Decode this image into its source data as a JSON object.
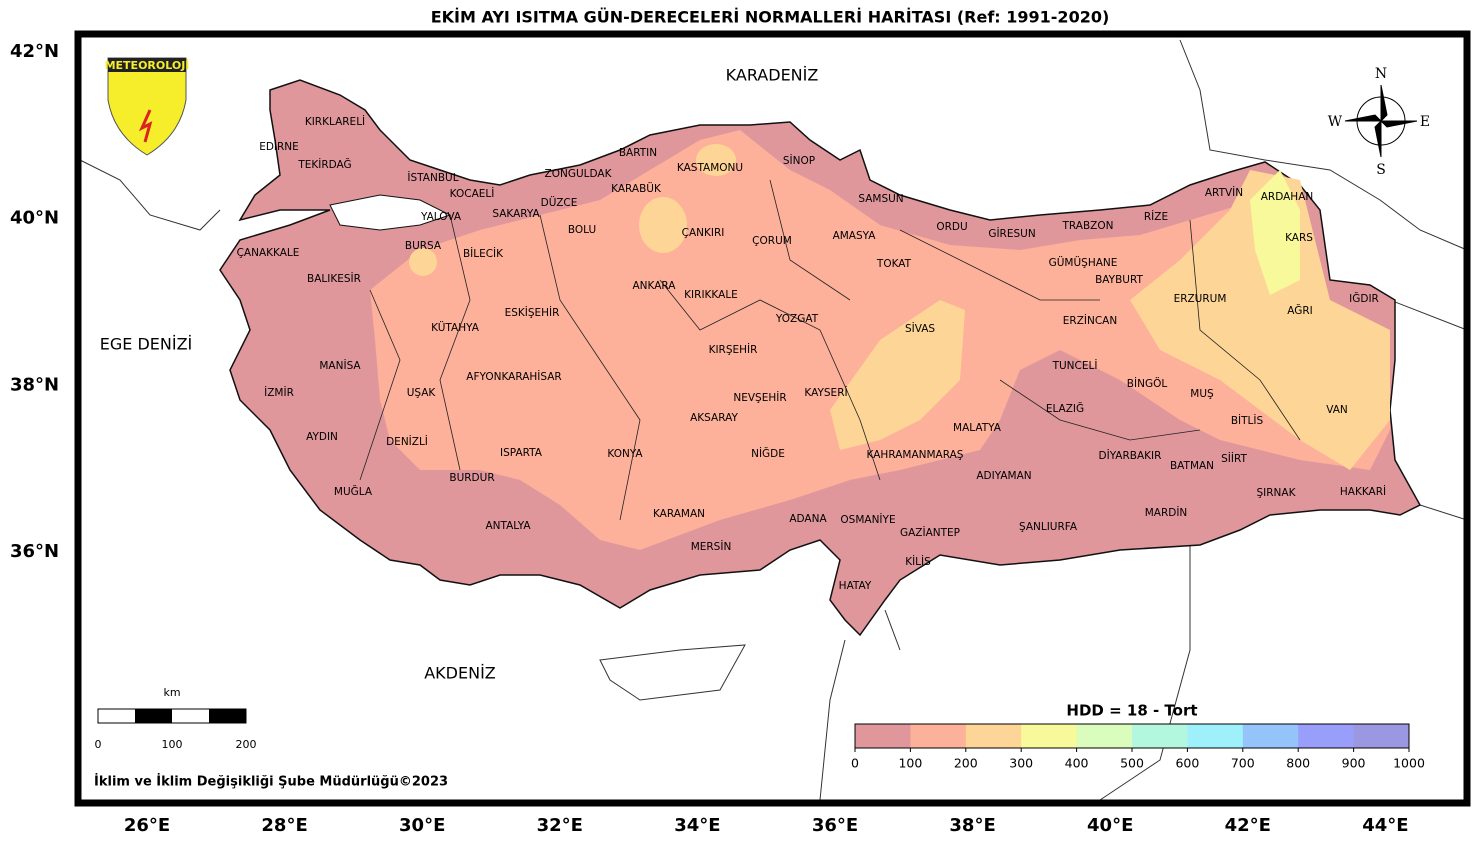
{
  "map": {
    "title": "EKİM AYI ISITMA GÜN-DERECELERİ NORMALLERİ HARİTASI (Ref: 1991-2020)",
    "lat_ticks": [
      {
        "value": 42,
        "label": "42°N"
      },
      {
        "value": 40,
        "label": "40°N"
      },
      {
        "value": 38,
        "label": "38°N"
      },
      {
        "value": 36,
        "label": "36°N"
      }
    ],
    "lon_ticks": [
      {
        "value": 26,
        "label": "26°E"
      },
      {
        "value": 28,
        "label": "28°E"
      },
      {
        "value": 30,
        "label": "30°E"
      },
      {
        "value": 32,
        "label": "32°E"
      },
      {
        "value": 34,
        "label": "34°E"
      },
      {
        "value": 36,
        "label": "36°E"
      },
      {
        "value": 38,
        "label": "38°E"
      },
      {
        "value": 40,
        "label": "40°E"
      },
      {
        "value": 42,
        "label": "42°E"
      },
      {
        "value": 44,
        "label": "44°E"
      }
    ],
    "seas": [
      "KARADENİZ",
      "EGE DENİZİ",
      "AKDENİZ"
    ],
    "logo_text": "METEOROLOJİ",
    "compass": [
      "N",
      "S",
      "E",
      "W"
    ],
    "scale_bar": {
      "unit": "km",
      "labels": [
        0,
        100,
        200
      ]
    },
    "footer": "İklim ve İklim Değişikliği Şube Müdürlüğü©2023",
    "colorbar": {
      "label": "HDD = 18 - Tort",
      "ticks": [
        0,
        100,
        200,
        300,
        400,
        500,
        600,
        700,
        800,
        900,
        1000
      ],
      "colors": [
        "#df979c",
        "#fdb09a",
        "#fdd596",
        "#f8f99a",
        "#dafdbd",
        "#b3f8de",
        "#9ef1fb",
        "#95c4fb",
        "#989efa",
        "#9b97e0"
      ]
    },
    "provinces": [
      "KIRKLARELİ",
      "EDİRNE",
      "TEKİRDAĞ",
      "İSTANBUL",
      "KOCAELİ",
      "YALOVA",
      "SAKARYA",
      "DÜZCE",
      "ZONGULDAK",
      "BARTIN",
      "KARABÜK",
      "KASTAMONU",
      "SİNOP",
      "SAMSUN",
      "ORDU",
      "GİRESUN",
      "TRABZON",
      "RİZE",
      "ARTVİN",
      "ARDAHAN",
      "KARS",
      "IĞDIR",
      "AĞRI",
      "ERZURUM",
      "BAYBURT",
      "GÜMÜŞHANE",
      "ERZİNCAN",
      "TUNCELİ",
      "BİNGÖL",
      "MUŞ",
      "BİTLİS",
      "VAN",
      "ELAZIĞ",
      "MALATYA",
      "DİYARBAKIR",
      "BATMAN",
      "SİİRT",
      "ŞIRNAK",
      "HAKKARİ",
      "MARDİN",
      "ŞANLIURFA",
      "ADIYAMAN",
      "KAHRAMANMARAŞ",
      "GAZİANTEP",
      "KİLİS",
      "OSMANİYE",
      "HATAY",
      "ADANA",
      "MERSİN",
      "KARAMAN",
      "NİĞDE",
      "KAYSERİ",
      "SİVAS",
      "YOZGAT",
      "TOKAT",
      "AMASYA",
      "ÇORUM",
      "ÇANKIRI",
      "KIRIKKALE",
      "ANKARA",
      "KIRŞEHİR",
      "NEVŞEHİR",
      "AKSARAY",
      "KONYA",
      "ANTALYA",
      "BURDUR",
      "ISPARTA",
      "DENİZLİ",
      "MUĞLA",
      "AYDIN",
      "İZMİR",
      "MANİSA",
      "UŞAK",
      "AFYONKARAHİSAR",
      "KÜTAHYA",
      "ESKİŞEHİR",
      "BİLECİK",
      "BURSA",
      "BALIKESİR",
      "ÇANAKKALE",
      "BOLU"
    ]
  }
}
